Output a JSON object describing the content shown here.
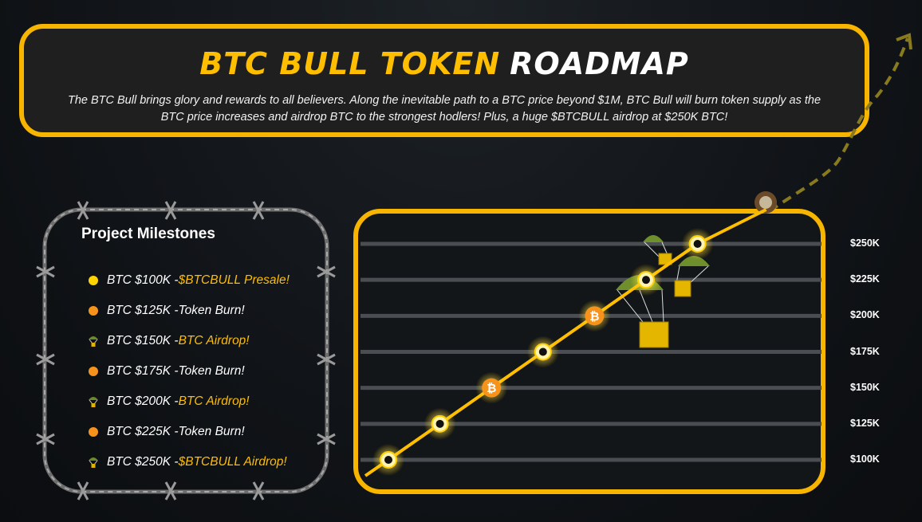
{
  "header": {
    "title_part1": "BTC BULL TOKEN",
    "title_part2": "ROADMAP",
    "description": "The BTC Bull brings glory and rewards to all believers. Along the inevitable path to a BTC price beyond $1M, BTC Bull will burn token supply as the BTC price increases and airdrop BTC to the strongest hodlers! Plus, a huge $BTCBULL airdrop at $250K BTC!"
  },
  "milestones": {
    "title": "Project Milestones",
    "items": [
      {
        "prefix": "BTC $100K - ",
        "highlight": "$BTCBULL Presale!",
        "icon": "yellow-dot-icon",
        "highlighted": true
      },
      {
        "prefix": "BTC $125K - ",
        "highlight": " Token Burn!",
        "icon": "orange-dot-icon",
        "highlighted": false
      },
      {
        "prefix": "BTC $150K - ",
        "highlight": "BTC Airdrop!",
        "icon": "parachute-icon",
        "highlighted": true
      },
      {
        "prefix": "BTC $175K - ",
        "highlight": "Token Burn!",
        "icon": "orange-dot-icon",
        "highlighted": false
      },
      {
        "prefix": "BTC $200K - ",
        "highlight": "BTC Airdrop!",
        "icon": "parachute-icon",
        "highlighted": true
      },
      {
        "prefix": "BTC $225K - ",
        "highlight": "Token Burn!",
        "icon": "orange-dot-icon",
        "highlighted": false
      },
      {
        "prefix": "BTC $250K - ",
        "highlight": "$BTCBULL Airdrop!",
        "icon": "parachute-icon",
        "highlighted": true
      }
    ]
  },
  "colors": {
    "accent": "#ffbe00",
    "yellow_dot": "#ffd400",
    "orange_dot": "#f7931a",
    "border": "#f7b500"
  },
  "chart_data": {
    "type": "line",
    "y_tick_labels": [
      "$250K",
      "$225K",
      "$200K",
      "$175K",
      "$150K",
      "$125K",
      "$100K"
    ],
    "ylim": [
      100,
      250
    ],
    "points": [
      {
        "y": 100,
        "marker": "ring"
      },
      {
        "y": 125,
        "marker": "ring"
      },
      {
        "y": 150,
        "marker": "bitcoin"
      },
      {
        "y": 175,
        "marker": "ring"
      },
      {
        "y": 200,
        "marker": "bitcoin"
      },
      {
        "y": 225,
        "marker": "ring"
      },
      {
        "y": 250,
        "marker": "ring"
      }
    ],
    "bitcoin_symbol": "₿"
  }
}
